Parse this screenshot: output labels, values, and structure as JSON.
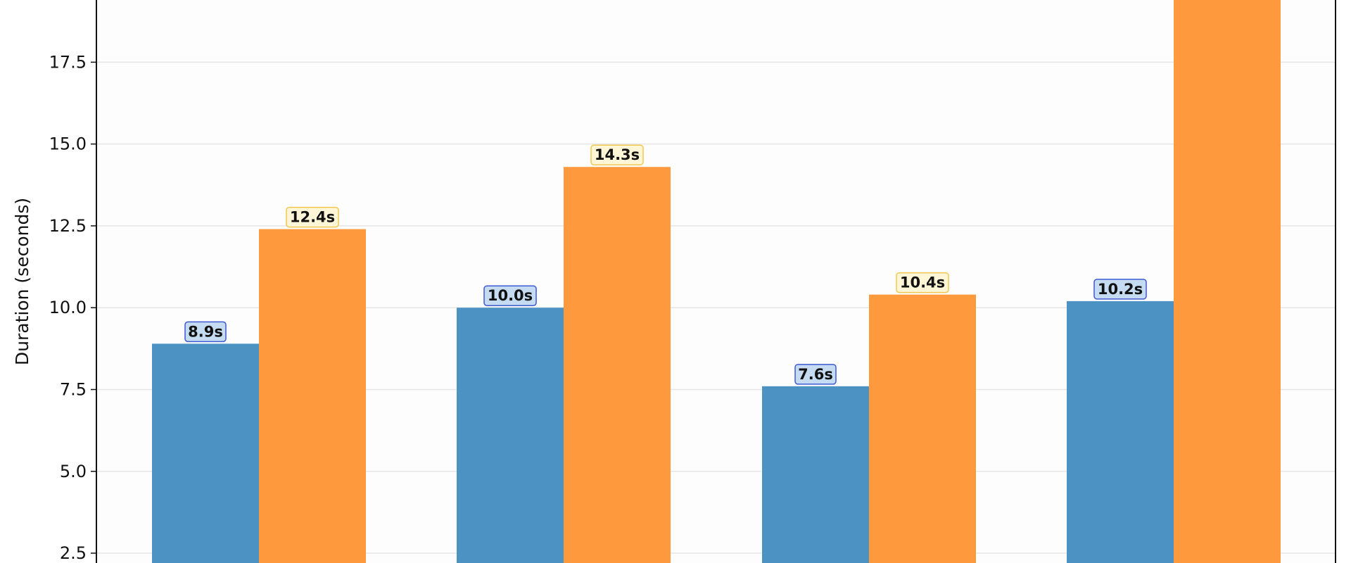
{
  "chart_data": {
    "type": "bar",
    "title": "",
    "xlabel": "",
    "ylabel": "Duration (seconds)",
    "categories": [
      "",
      "",
      "",
      ""
    ],
    "series": [
      {
        "values": [
          8.9,
          10.0,
          7.6,
          10.2
        ],
        "color": "#4c92c3",
        "label_fill": "#c5dbf1",
        "label_stroke": "#3f59d2",
        "value_labels": [
          "8.9s",
          "10.0s",
          "7.6s",
          "10.2s"
        ]
      },
      {
        "values": [
          12.4,
          14.3,
          10.4,
          null
        ],
        "color": "#ff993e",
        "label_fill": "#fff6d8",
        "label_stroke": "#f1c84f",
        "value_labels": [
          "12.4s",
          "14.3s",
          "10.4s",
          ""
        ]
      }
    ],
    "yticks": [
      "2.5",
      "5.0",
      "7.5",
      "10.0",
      "12.5",
      "15.0",
      "17.5"
    ],
    "ylim": [
      2.2,
      19.4
    ],
    "grid": true,
    "legend": "none"
  }
}
